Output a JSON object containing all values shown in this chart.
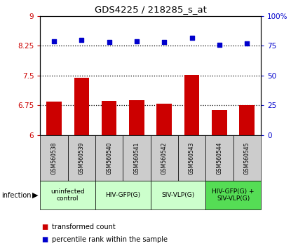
{
  "title": "GDS4225 / 218285_s_at",
  "samples": [
    "GSM560538",
    "GSM560539",
    "GSM560540",
    "GSM560541",
    "GSM560542",
    "GSM560543",
    "GSM560544",
    "GSM560545"
  ],
  "bar_values": [
    6.84,
    7.45,
    6.86,
    6.88,
    6.79,
    7.52,
    6.64,
    6.75
  ],
  "dot_values": [
    79,
    80,
    78,
    79,
    78,
    82,
    76,
    77
  ],
  "ylim_left": [
    6,
    9
  ],
  "ylim_right": [
    0,
    100
  ],
  "yticks_left": [
    6,
    6.75,
    7.5,
    8.25,
    9
  ],
  "yticks_right": [
    0,
    25,
    50,
    75,
    100
  ],
  "bar_color": "#cc0000",
  "dot_color": "#0000cc",
  "bar_width": 0.55,
  "groups": [
    {
      "label": "uninfected\ncontrol",
      "start": 0,
      "end": 2,
      "color": "#ccffcc"
    },
    {
      "label": "HIV-GFP(G)",
      "start": 2,
      "end": 4,
      "color": "#ccffcc"
    },
    {
      "label": "SIV-VLP(G)",
      "start": 4,
      "end": 6,
      "color": "#ccffcc"
    },
    {
      "label": "HIV-GFP(G) +\nSIV-VLP(G)",
      "start": 6,
      "end": 8,
      "color": "#55dd55"
    }
  ],
  "infection_label": "infection",
  "legend_bar_label": "transformed count",
  "legend_dot_label": "percentile rank within the sample",
  "sample_box_color": "#cccccc",
  "dotted_yticks": [
    6.75,
    7.5,
    8.25
  ]
}
